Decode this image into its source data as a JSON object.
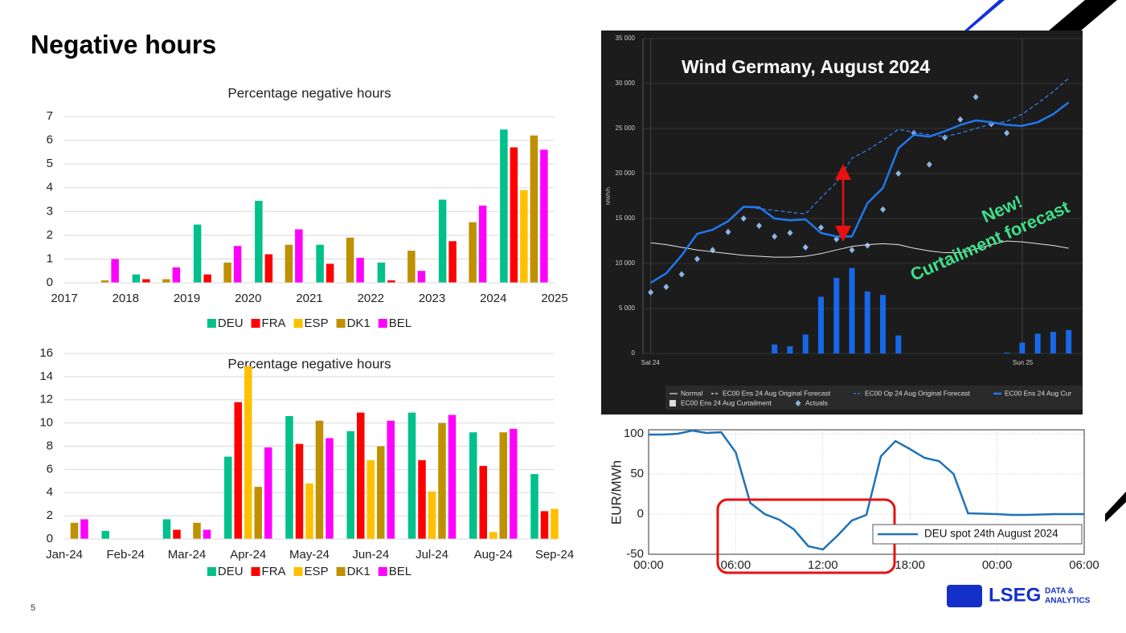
{
  "slide": {
    "title": "Negative hours",
    "page_number": "5",
    "logo": {
      "name": "LSEG",
      "tagline_1": "DATA &",
      "tagline_2": "ANALYTICS"
    }
  },
  "chart_data": [
    {
      "type": "bar",
      "title": "Percentage negative hours",
      "x": [
        2017,
        2018,
        2019,
        2020,
        2021,
        2022,
        2023,
        2024
      ],
      "xlim": [
        2017,
        2025
      ],
      "xticks": [
        2017,
        2018,
        2019,
        2020,
        2021,
        2022,
        2023,
        2024,
        2025
      ],
      "ylim": [
        0,
        7
      ],
      "yticks": [
        0,
        1,
        2,
        3,
        4,
        5,
        6,
        7
      ],
      "grid": true,
      "legend": "bottom",
      "series": [
        {
          "name": "DEU",
          "color": "#00c08b",
          "values": [
            0,
            0.35,
            2.45,
            3.45,
            1.6,
            0.85,
            3.5,
            6.45
          ]
        },
        {
          "name": "FRA",
          "color": "#ff0000",
          "values": [
            0,
            0.15,
            0.35,
            1.2,
            0.8,
            0.1,
            1.75,
            5.7
          ]
        },
        {
          "name": "ESP",
          "color": "#ffc000",
          "values": [
            0,
            0,
            0,
            0,
            0,
            0,
            0,
            3.9
          ]
        },
        {
          "name": "DK1",
          "color": "#bf9000",
          "values": [
            0.1,
            0.15,
            0.85,
            1.6,
            1.9,
            1.35,
            2.55,
            6.2
          ]
        },
        {
          "name": "BEL",
          "color": "#ff00ff",
          "values": [
            1.0,
            0.65,
            1.55,
            2.25,
            1.05,
            0.5,
            3.25,
            5.6
          ]
        }
      ]
    },
    {
      "type": "bar",
      "title": "Percentage negative hours",
      "categories": [
        "Jan-24",
        "Feb-24",
        "Mar-24",
        "Apr-24",
        "May-24",
        "Jun-24",
        "Jul-24",
        "Aug-24",
        "Sep-24"
      ],
      "ylim": [
        0,
        16
      ],
      "yticks": [
        0,
        2,
        4,
        6,
        8,
        10,
        12,
        14,
        16
      ],
      "grid": true,
      "legend": "bottom",
      "series": [
        {
          "name": "DEU",
          "color": "#00c08b",
          "values": [
            0,
            0.7,
            1.7,
            7.1,
            10.6,
            9.3,
            10.9,
            9.2,
            5.6
          ]
        },
        {
          "name": "FRA",
          "color": "#ff0000",
          "values": [
            0,
            0,
            0.8,
            11.8,
            8.2,
            10.9,
            6.8,
            6.3,
            2.4
          ]
        },
        {
          "name": "ESP",
          "color": "#ffc000",
          "values": [
            0,
            0,
            0,
            14.9,
            4.8,
            6.8,
            4.1,
            0.6,
            2.6
          ]
        },
        {
          "name": "DK1",
          "color": "#bf9000",
          "values": [
            1.4,
            0,
            1.4,
            4.5,
            10.2,
            8.0,
            10.0,
            9.2,
            null
          ]
        },
        {
          "name": "BEL",
          "color": "#ff00ff",
          "values": [
            1.7,
            0,
            0.8,
            7.9,
            8.7,
            10.2,
            10.7,
            9.5,
            null
          ]
        }
      ]
    },
    {
      "type": "combo",
      "title": "Wind Germany, August 2024",
      "ylabel": "MWh/h",
      "annotations": [
        "New!",
        "Curtailment forecast"
      ],
      "x": [
        0,
        1,
        2,
        3,
        4,
        5,
        6,
        7,
        8,
        9,
        10,
        11,
        12,
        13,
        14,
        15,
        16,
        17,
        18,
        19,
        20,
        21,
        22,
        23,
        24,
        25,
        26,
        27
      ],
      "xlim": [
        -0.5,
        27.9
      ],
      "xticks": [
        {
          "value": 0,
          "label": "Sat 24"
        },
        {
          "value": 24,
          "label": "Sun 25"
        }
      ],
      "ylim": [
        0,
        35000
      ],
      "yticks": [
        0,
        {
          "value": 5000,
          "label": "5 000"
        },
        {
          "value": 10000,
          "label": "10 000"
        },
        {
          "value": 15000,
          "label": "15 000"
        },
        {
          "value": 20000,
          "label": "20 000"
        },
        {
          "value": 25000,
          "label": "25 000"
        },
        {
          "value": 30000,
          "label": "30 000"
        },
        {
          "value": 35000,
          "label": "35 000"
        }
      ],
      "grid": true,
      "background": "#1c1c1c",
      "series": [
        {
          "name": "Normal",
          "kind": "line",
          "color": "#e6e6e6",
          "values": [
            12300,
            12100,
            11800,
            11500,
            11300,
            11100,
            10900,
            10800,
            10700,
            10700,
            10800,
            11100,
            11500,
            11900,
            12100,
            12200,
            12100,
            11700,
            11400,
            11200,
            11200,
            11600,
            12100,
            12500,
            12400,
            12200,
            12000,
            11700
          ]
        },
        {
          "name": "EC00 Ens 24 Aug Original Forecast",
          "kind": "dashed",
          "color": "#e6e6e6",
          "values": [
            null,
            null,
            null,
            null,
            null,
            null,
            null,
            null,
            null,
            null,
            null,
            null,
            null,
            null,
            null,
            null,
            null,
            null,
            null,
            null,
            null,
            null,
            null,
            null,
            null,
            null,
            null,
            null
          ]
        },
        {
          "name": "EC00 Op 24 Aug Original Forecast",
          "kind": "dashed",
          "color": "#2f7df0",
          "values": [
            7860,
            8900,
            10900,
            13300,
            13750,
            14700,
            16300,
            16100,
            15900,
            15700,
            15500,
            17300,
            19000,
            21700,
            22600,
            23700,
            24900,
            24600,
            24300,
            24100,
            24500,
            25000,
            25500,
            25800,
            26600,
            27800,
            29100,
            30600
          ]
        },
        {
          "name": "EC00 Ens 24 Aug Cur",
          "kind": "line-thick",
          "color": "#1f78f0",
          "values": [
            7860,
            8900,
            10900,
            13300,
            13750,
            14700,
            16300,
            16250,
            15000,
            14800,
            14900,
            13400,
            13000,
            13000,
            16700,
            18400,
            22800,
            24300,
            24100,
            24700,
            25400,
            25900,
            25700,
            25400,
            25300,
            25700,
            26600,
            27900
          ]
        },
        {
          "name": "EC00 Ens 24 Aug Curtailment",
          "kind": "bar",
          "color": "#1668e8",
          "values": [
            0,
            0,
            0,
            0,
            0,
            0,
            0,
            0,
            1000,
            800,
            2100,
            6300,
            8400,
            9500,
            6900,
            6500,
            2000,
            0,
            0,
            0,
            0,
            0,
            0,
            100,
            1200,
            2200,
            2400,
            2600
          ]
        },
        {
          "name": "Actuals",
          "kind": "scatter",
          "color": "#8fb4e6",
          "values": [
            6800,
            7400,
            8800,
            10500,
            11500,
            13500,
            15000,
            14200,
            13000,
            13400,
            11800,
            14000,
            12700,
            11500,
            12000,
            16000,
            20000,
            24500,
            21000,
            24000,
            26000,
            28500,
            25500,
            24500,
            null,
            null,
            null,
            null
          ]
        }
      ]
    },
    {
      "type": "line",
      "ylabel": "EUR/MWh",
      "x": [
        0,
        1,
        2,
        3,
        4,
        5,
        6,
        7,
        8,
        9,
        10,
        11,
        12,
        13,
        14,
        15,
        16,
        17,
        18,
        19,
        20,
        21,
        22,
        23,
        24,
        25,
        26,
        27,
        28,
        29,
        30
      ],
      "xlim": [
        0,
        30
      ],
      "xticks": [
        {
          "value": 0,
          "label": "00:00"
        },
        {
          "value": 6,
          "label": "06:00"
        },
        {
          "value": 12,
          "label": "12:00"
        },
        {
          "value": 18,
          "label": "18:00"
        },
        {
          "value": 24,
          "label": "00:00"
        },
        {
          "value": 30,
          "label": "06:00"
        }
      ],
      "ylim": [
        -50,
        105
      ],
      "yticks": [
        -50,
        0,
        50,
        100
      ],
      "grid": true,
      "legend": "lower right",
      "series": [
        {
          "name": "DEU spot 24th August 2024",
          "color": "#1f72b8",
          "values": [
            99,
            99,
            100,
            104,
            101,
            102,
            77,
            14,
            0,
            -7,
            -19,
            -40,
            -44,
            -27,
            -8,
            -1,
            72,
            91,
            81,
            70,
            66,
            50,
            1,
            0.5,
            0,
            -1,
            -1,
            -0.5,
            0,
            0,
            0
          ]
        }
      ]
    }
  ]
}
